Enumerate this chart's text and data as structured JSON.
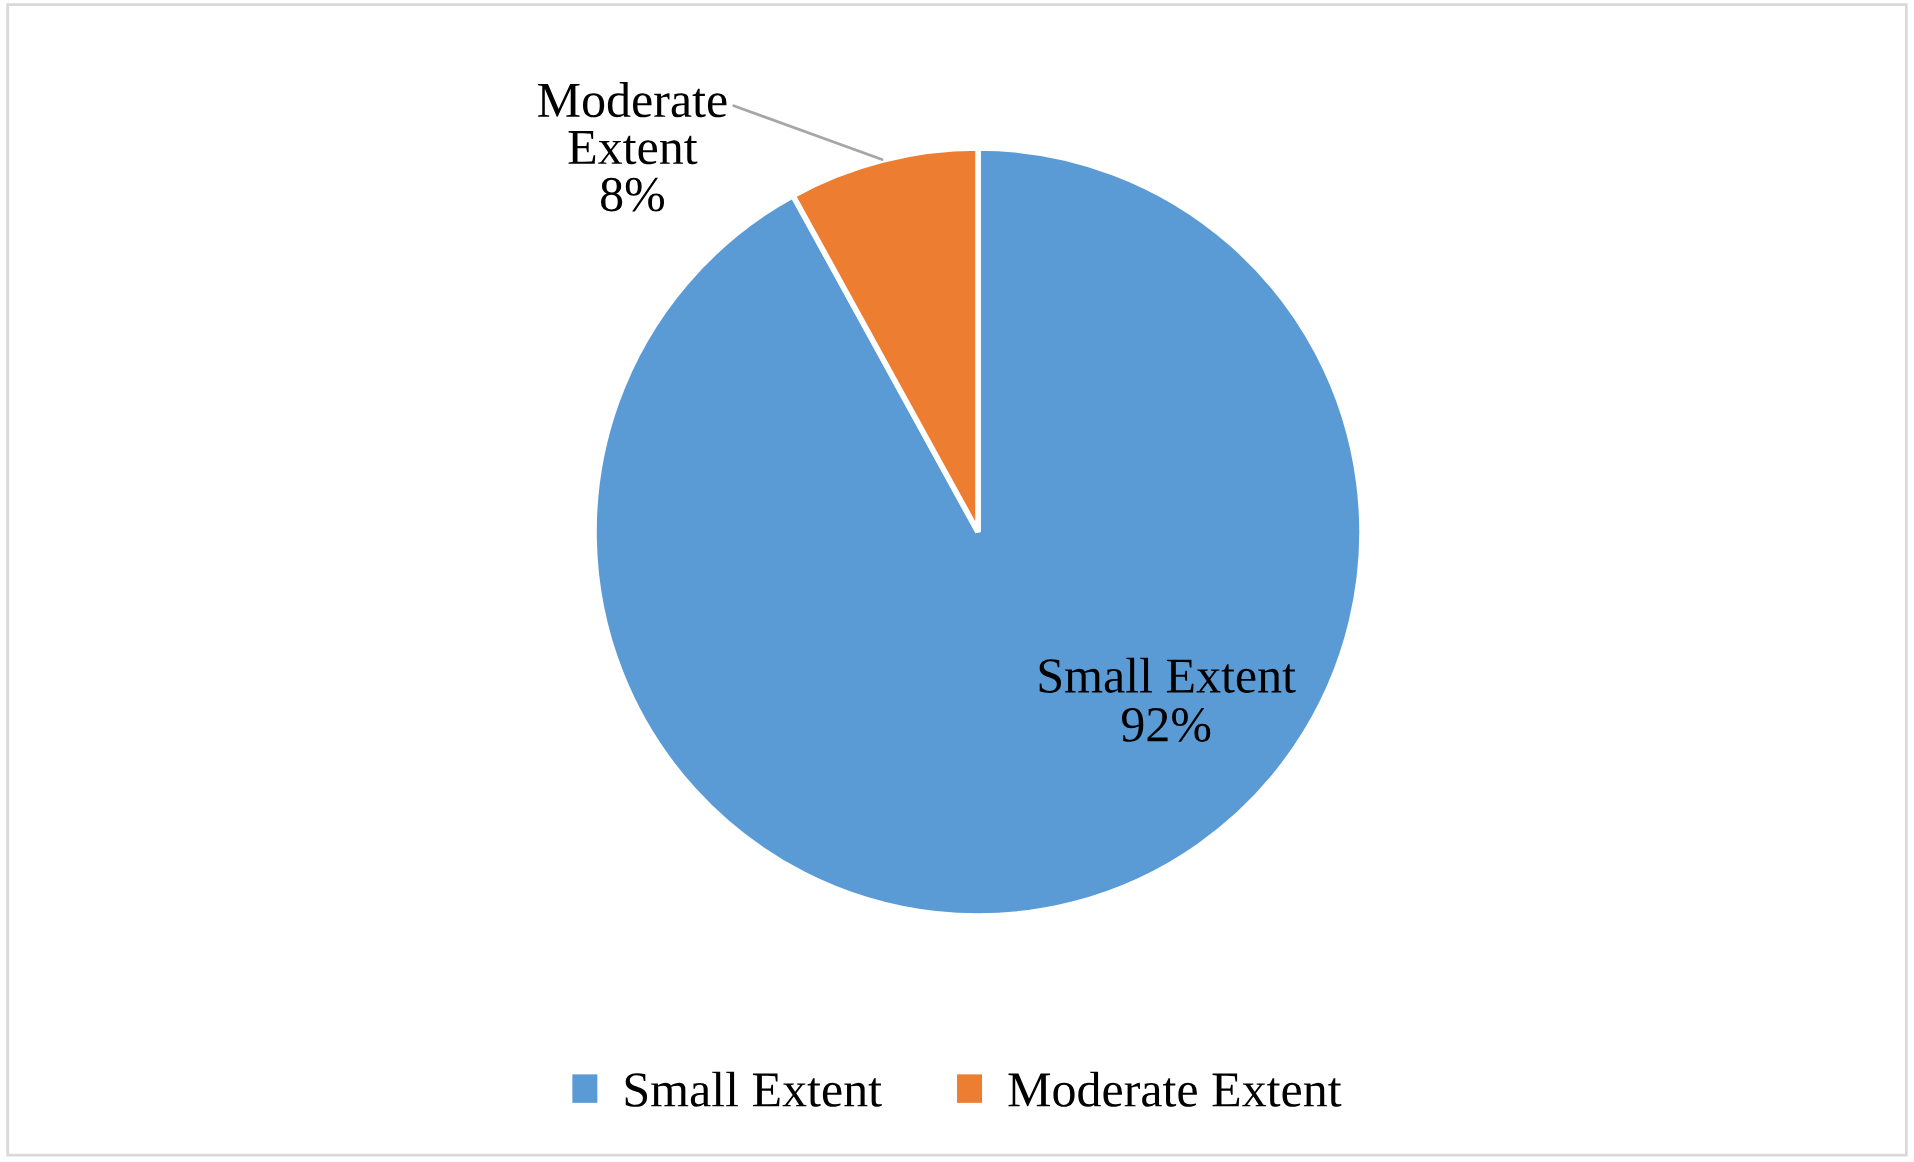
{
  "chart_data": {
    "type": "pie",
    "categories": [
      "Small Extent",
      "Moderate Extent"
    ],
    "values": [
      92,
      8
    ],
    "value_labels": [
      "92%",
      "8%"
    ],
    "colors": [
      "#5b9bd5",
      "#ed7d31"
    ],
    "legend": "bottom"
  }
}
